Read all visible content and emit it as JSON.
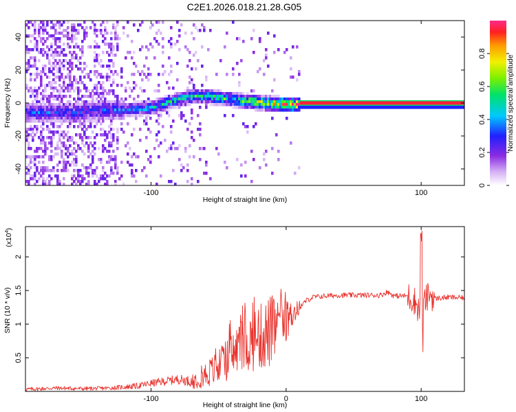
{
  "title": "C2E1.2026.018.21.28.G05",
  "colors": {
    "snr_line": "#e8302a",
    "center_band": "#ff1f3a",
    "axis": "#000000"
  },
  "chart_data": [
    {
      "type": "heatmap",
      "xlabel": "Height of straight line (km)",
      "ylabel": "Frequency (Hz)",
      "xlim": [
        -193,
        132
      ],
      "ylim": [
        -50,
        50
      ],
      "xticks": [
        -100,
        100
      ],
      "yticks": [
        -40,
        -20,
        0,
        20,
        40
      ],
      "grid": false,
      "colorbar": {
        "label": "Normalized spectral amplitude",
        "range": [
          0,
          1
        ],
        "ticks": [
          0.0,
          0.2,
          0.4,
          0.6,
          0.8
        ]
      },
      "ridge": {
        "x": [
          -193,
          -160,
          -140,
          -120,
          -100,
          -80,
          -70,
          -60,
          -50,
          -40,
          -30,
          -20,
          -10,
          0,
          20,
          60,
          100,
          132
        ],
        "frequency": [
          -5,
          -5,
          -4,
          -3,
          -2,
          3,
          5,
          5,
          4,
          3,
          2,
          1,
          0.5,
          0,
          0,
          0,
          0,
          0
        ],
        "amplitude": [
          0.35,
          0.35,
          0.35,
          0.4,
          0.5,
          0.55,
          0.55,
          0.55,
          0.6,
          0.65,
          0.7,
          0.8,
          0.9,
          1.0,
          0.98,
          0.98,
          0.98,
          0.98
        ]
      }
    },
    {
      "type": "line",
      "xlabel": "Height of straight line (km)",
      "ylabel": "SNR (10 * v/v)",
      "yscale_label": "(x10",
      "yscale_exp": "4",
      "yscale_close": ")",
      "xlim": [
        -193,
        132
      ],
      "ylim": [
        0,
        2.45
      ],
      "xticks": [
        -100,
        0,
        100
      ],
      "yticks": [
        0.5,
        1.0,
        1.5,
        2.0
      ],
      "grid": false,
      "series": [
        {
          "name": "SNR",
          "x": [
            -193,
            -170,
            -150,
            -130,
            -110,
            -100,
            -90,
            -80,
            -70,
            -60,
            -50,
            -45,
            -40,
            -35,
            -30,
            -25,
            -20,
            -15,
            -10,
            -5,
            0,
            5,
            10,
            15,
            20,
            30,
            40,
            50,
            60,
            70,
            75,
            80,
            90,
            95,
            99,
            100,
            101,
            102,
            104,
            106,
            110,
            120,
            132
          ],
          "y": [
            0.03,
            0.05,
            0.04,
            0.05,
            0.08,
            0.12,
            0.15,
            0.18,
            0.15,
            0.25,
            0.35,
            0.45,
            0.55,
            0.65,
            0.7,
            0.75,
            0.8,
            0.85,
            0.9,
            1.0,
            1.05,
            1.15,
            1.25,
            1.35,
            1.4,
            1.42,
            1.43,
            1.43,
            1.43,
            1.43,
            1.48,
            1.42,
            1.42,
            1.35,
            1.2,
            2.35,
            0.78,
            1.6,
            1.2,
            1.45,
            1.38,
            1.4,
            1.39
          ]
        }
      ]
    }
  ]
}
